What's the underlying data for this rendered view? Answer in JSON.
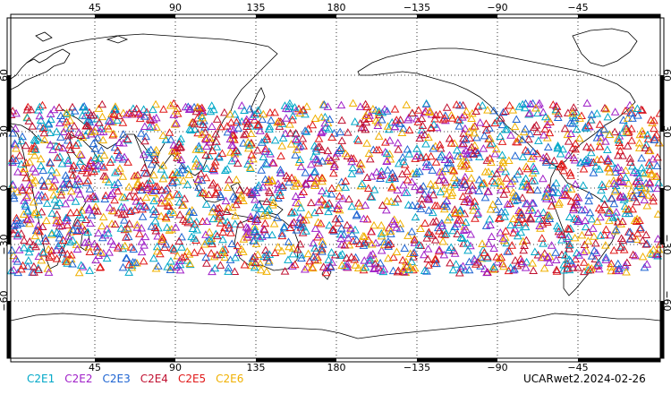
{
  "chart_data": {
    "type": "scatter",
    "projection": "equirectangular",
    "central_longitude": 180,
    "lon_range": [
      0,
      360
    ],
    "lat_range": [
      -90,
      90
    ],
    "grid": true,
    "top_lon_ticks": [
      "45",
      "90",
      "135",
      "180",
      "−135",
      "−90",
      "−45"
    ],
    "bottom_lon_ticks": [
      "45",
      "90",
      "135",
      "180",
      "−135",
      "−90",
      "−45"
    ],
    "lat_ticks_left": [
      "60",
      "30",
      "0",
      "−30",
      "−60"
    ],
    "lat_ticks_right": [
      "60",
      "30",
      "0",
      "−30",
      "−60"
    ],
    "series": [
      {
        "name": "C2E1",
        "color": "#00a8c8"
      },
      {
        "name": "C2E2",
        "color": "#a020c8"
      },
      {
        "name": "C2E3",
        "color": "#1e64d2"
      },
      {
        "name": "C2E4",
        "color": "#c01030"
      },
      {
        "name": "C2E5",
        "color": "#e01818"
      },
      {
        "name": "C2E6",
        "color": "#f0b000"
      }
    ],
    "marker": "triangle-open",
    "coverage_lat_range": [
      -45,
      45
    ],
    "caption": "UCARwet2.2024-02-26"
  }
}
